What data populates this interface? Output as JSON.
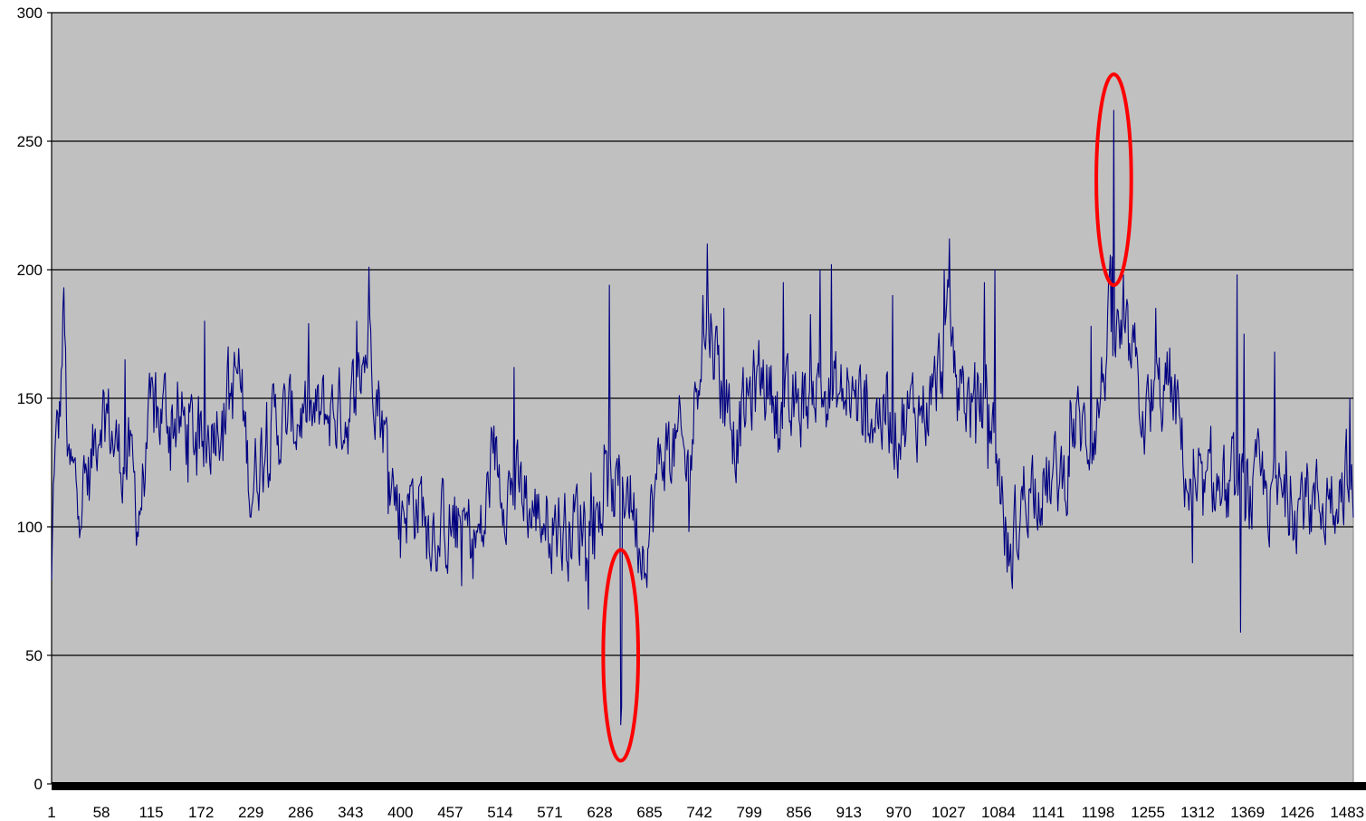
{
  "chart_data": {
    "type": "line",
    "title": "",
    "xlabel": "",
    "ylabel": "",
    "ylim": [
      0,
      300
    ],
    "xlim": [
      1,
      1490
    ],
    "yticks": [
      0,
      50,
      100,
      150,
      200,
      250,
      300
    ],
    "xticks": [
      1,
      58,
      115,
      172,
      229,
      286,
      343,
      400,
      457,
      514,
      571,
      628,
      685,
      742,
      799,
      856,
      913,
      970,
      1027,
      1084,
      1141,
      1198,
      1255,
      1312,
      1369,
      1426,
      1483
    ],
    "grid": true,
    "legend": "none",
    "n_points": 1490,
    "x_start": 1,
    "series": [
      {
        "color": "#000080",
        "profile": [
          [
            1,
            75
          ],
          [
            4,
            125
          ],
          [
            10,
            140
          ],
          [
            15,
            185
          ],
          [
            20,
            120
          ],
          [
            30,
            115
          ],
          [
            45,
            120
          ],
          [
            58,
            150
          ],
          [
            75,
            130
          ],
          [
            90,
            125
          ],
          [
            100,
            105
          ],
          [
            115,
            140
          ],
          [
            130,
            145
          ],
          [
            150,
            140
          ],
          [
            172,
            130
          ],
          [
            190,
            145
          ],
          [
            205,
            150
          ],
          [
            215,
            160
          ],
          [
            229,
            115
          ],
          [
            245,
            135
          ],
          [
            260,
            140
          ],
          [
            275,
            140
          ],
          [
            286,
            145
          ],
          [
            300,
            140
          ],
          [
            320,
            145
          ],
          [
            343,
            145
          ],
          [
            355,
            160
          ],
          [
            365,
            175
          ],
          [
            380,
            140
          ],
          [
            395,
            110
          ],
          [
            420,
            110
          ],
          [
            440,
            100
          ],
          [
            457,
            100
          ],
          [
            475,
            98
          ],
          [
            495,
            95
          ],
          [
            505,
            130
          ],
          [
            514,
            120
          ],
          [
            530,
            115
          ],
          [
            550,
            105
          ],
          [
            571,
            105
          ],
          [
            590,
            100
          ],
          [
            610,
            105
          ],
          [
            628,
            110
          ],
          [
            645,
            112
          ],
          [
            660,
            118
          ],
          [
            675,
            95
          ],
          [
            685,
            100
          ],
          [
            700,
            130
          ],
          [
            720,
            130
          ],
          [
            730,
            120
          ],
          [
            742,
            170
          ],
          [
            755,
            180
          ],
          [
            770,
            150
          ],
          [
            785,
            135
          ],
          [
            799,
            150
          ],
          [
            815,
            160
          ],
          [
            830,
            150
          ],
          [
            845,
            140
          ],
          [
            856,
            148
          ],
          [
            875,
            155
          ],
          [
            895,
            150
          ],
          [
            913,
            150
          ],
          [
            930,
            145
          ],
          [
            950,
            145
          ],
          [
            970,
            140
          ],
          [
            990,
            145
          ],
          [
            1010,
            150
          ],
          [
            1027,
            175
          ],
          [
            1040,
            155
          ],
          [
            1055,
            145
          ],
          [
            1070,
            150
          ],
          [
            1084,
            125
          ],
          [
            1095,
            88
          ],
          [
            1105,
            100
          ],
          [
            1115,
            115
          ],
          [
            1130,
            120
          ],
          [
            1141,
            115
          ],
          [
            1160,
            120
          ],
          [
            1170,
            140
          ],
          [
            1185,
            135
          ],
          [
            1198,
            145
          ],
          [
            1210,
            175
          ],
          [
            1225,
            170
          ],
          [
            1240,
            160
          ],
          [
            1255,
            140
          ],
          [
            1265,
            150
          ],
          [
            1280,
            155
          ],
          [
            1290,
            140
          ],
          [
            1305,
            108
          ],
          [
            1312,
            105
          ],
          [
            1330,
            115
          ],
          [
            1350,
            112
          ],
          [
            1369,
            110
          ],
          [
            1385,
            115
          ],
          [
            1400,
            110
          ],
          [
            1426,
            112
          ],
          [
            1450,
            110
          ],
          [
            1465,
            115
          ],
          [
            1483,
            120
          ],
          [
            1490,
            105
          ]
        ],
        "spikes": [
          [
            15,
            193
          ],
          [
            85,
            165
          ],
          [
            120,
            160
          ],
          [
            176,
            180
          ],
          [
            203,
            170
          ],
          [
            350,
            180
          ],
          [
            364,
            201
          ],
          [
            400,
            88
          ],
          [
            530,
            162
          ],
          [
            585,
            83
          ],
          [
            605,
            85
          ],
          [
            639,
            194
          ],
          [
            652,
            23
          ],
          [
            653,
            30
          ],
          [
            680,
            82
          ],
          [
            746,
            190
          ],
          [
            751,
            210
          ],
          [
            770,
            185
          ],
          [
            838,
            195
          ],
          [
            880,
            200
          ],
          [
            893,
            202
          ],
          [
            963,
            190
          ],
          [
            1022,
            200
          ],
          [
            1028,
            212
          ],
          [
            1068,
            195
          ],
          [
            1080,
            200
          ],
          [
            1100,
            76
          ],
          [
            1190,
            178
          ],
          [
            1214,
            205
          ],
          [
            1216,
            262
          ],
          [
            1227,
            198
          ],
          [
            1264,
            185
          ],
          [
            1306,
            86
          ],
          [
            1357,
            198
          ],
          [
            1361,
            59
          ],
          [
            1365,
            175
          ],
          [
            1400,
            168
          ],
          [
            1458,
            93
          ],
          [
            1486,
            150
          ]
        ],
        "noise_amplitude": 14
      }
    ],
    "annotations": [
      {
        "type": "ellipse",
        "color": "#ff0000",
        "cx": 652,
        "cy": 50,
        "rx": 20,
        "ry": 41
      },
      {
        "type": "ellipse",
        "color": "#ff0000",
        "cx": 1216,
        "cy": 235,
        "rx": 20,
        "ry": 41
      }
    ],
    "colors": {
      "plot_background": "#c0c0c0",
      "gridline": "#000000",
      "axis": "#000000",
      "page_background": "#ffffff"
    }
  }
}
